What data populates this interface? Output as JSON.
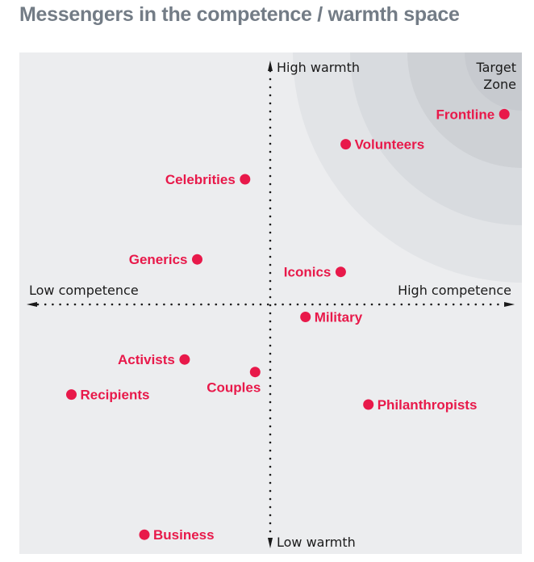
{
  "title": "Messengers in the competence / warmth space",
  "chart_data": {
    "type": "scatter",
    "title": "Messengers in the competence / warmth space",
    "xlabel_low": "Low competence",
    "xlabel_high": "High competence",
    "ylabel_high": "High warmth",
    "ylabel_low": "Low warmth",
    "xlim": [
      -10,
      10
    ],
    "ylim": [
      -10,
      10
    ],
    "grid": false,
    "annotation": {
      "line1": "Target",
      "line2": "Zone"
    },
    "zone_rings": 4,
    "colors": {
      "point": "#e8194a",
      "background": "#ecedef",
      "ring": [
        "#e2e4e7",
        "#d8dbdf",
        "#ced1d5",
        "#c7cacf"
      ],
      "axis": "#1a1a1a"
    },
    "points": [
      {
        "name": "Frontline",
        "x": 9.3,
        "y": 7.6,
        "label_side": "left"
      },
      {
        "name": "Volunteers",
        "x": 3.0,
        "y": 6.4,
        "label_side": "right"
      },
      {
        "name": "Celebrities",
        "x": -1.0,
        "y": 5.0,
        "label_side": "left"
      },
      {
        "name": "Generics",
        "x": -2.9,
        "y": 1.8,
        "label_side": "left"
      },
      {
        "name": "Iconics",
        "x": 2.8,
        "y": 1.3,
        "label_side": "left"
      },
      {
        "name": "Military",
        "x": 1.4,
        "y": -0.5,
        "label_side": "right"
      },
      {
        "name": "Activists",
        "x": -3.4,
        "y": -2.2,
        "label_side": "left"
      },
      {
        "name": "Couples",
        "x": -0.6,
        "y": -2.7,
        "label_side": "below-left"
      },
      {
        "name": "Recipients",
        "x": -7.9,
        "y": -3.6,
        "label_side": "right"
      },
      {
        "name": "Philanthropists",
        "x": 3.9,
        "y": -4.0,
        "label_side": "right"
      },
      {
        "name": "Business",
        "x": -5.0,
        "y": -9.2,
        "label_side": "right"
      }
    ]
  }
}
